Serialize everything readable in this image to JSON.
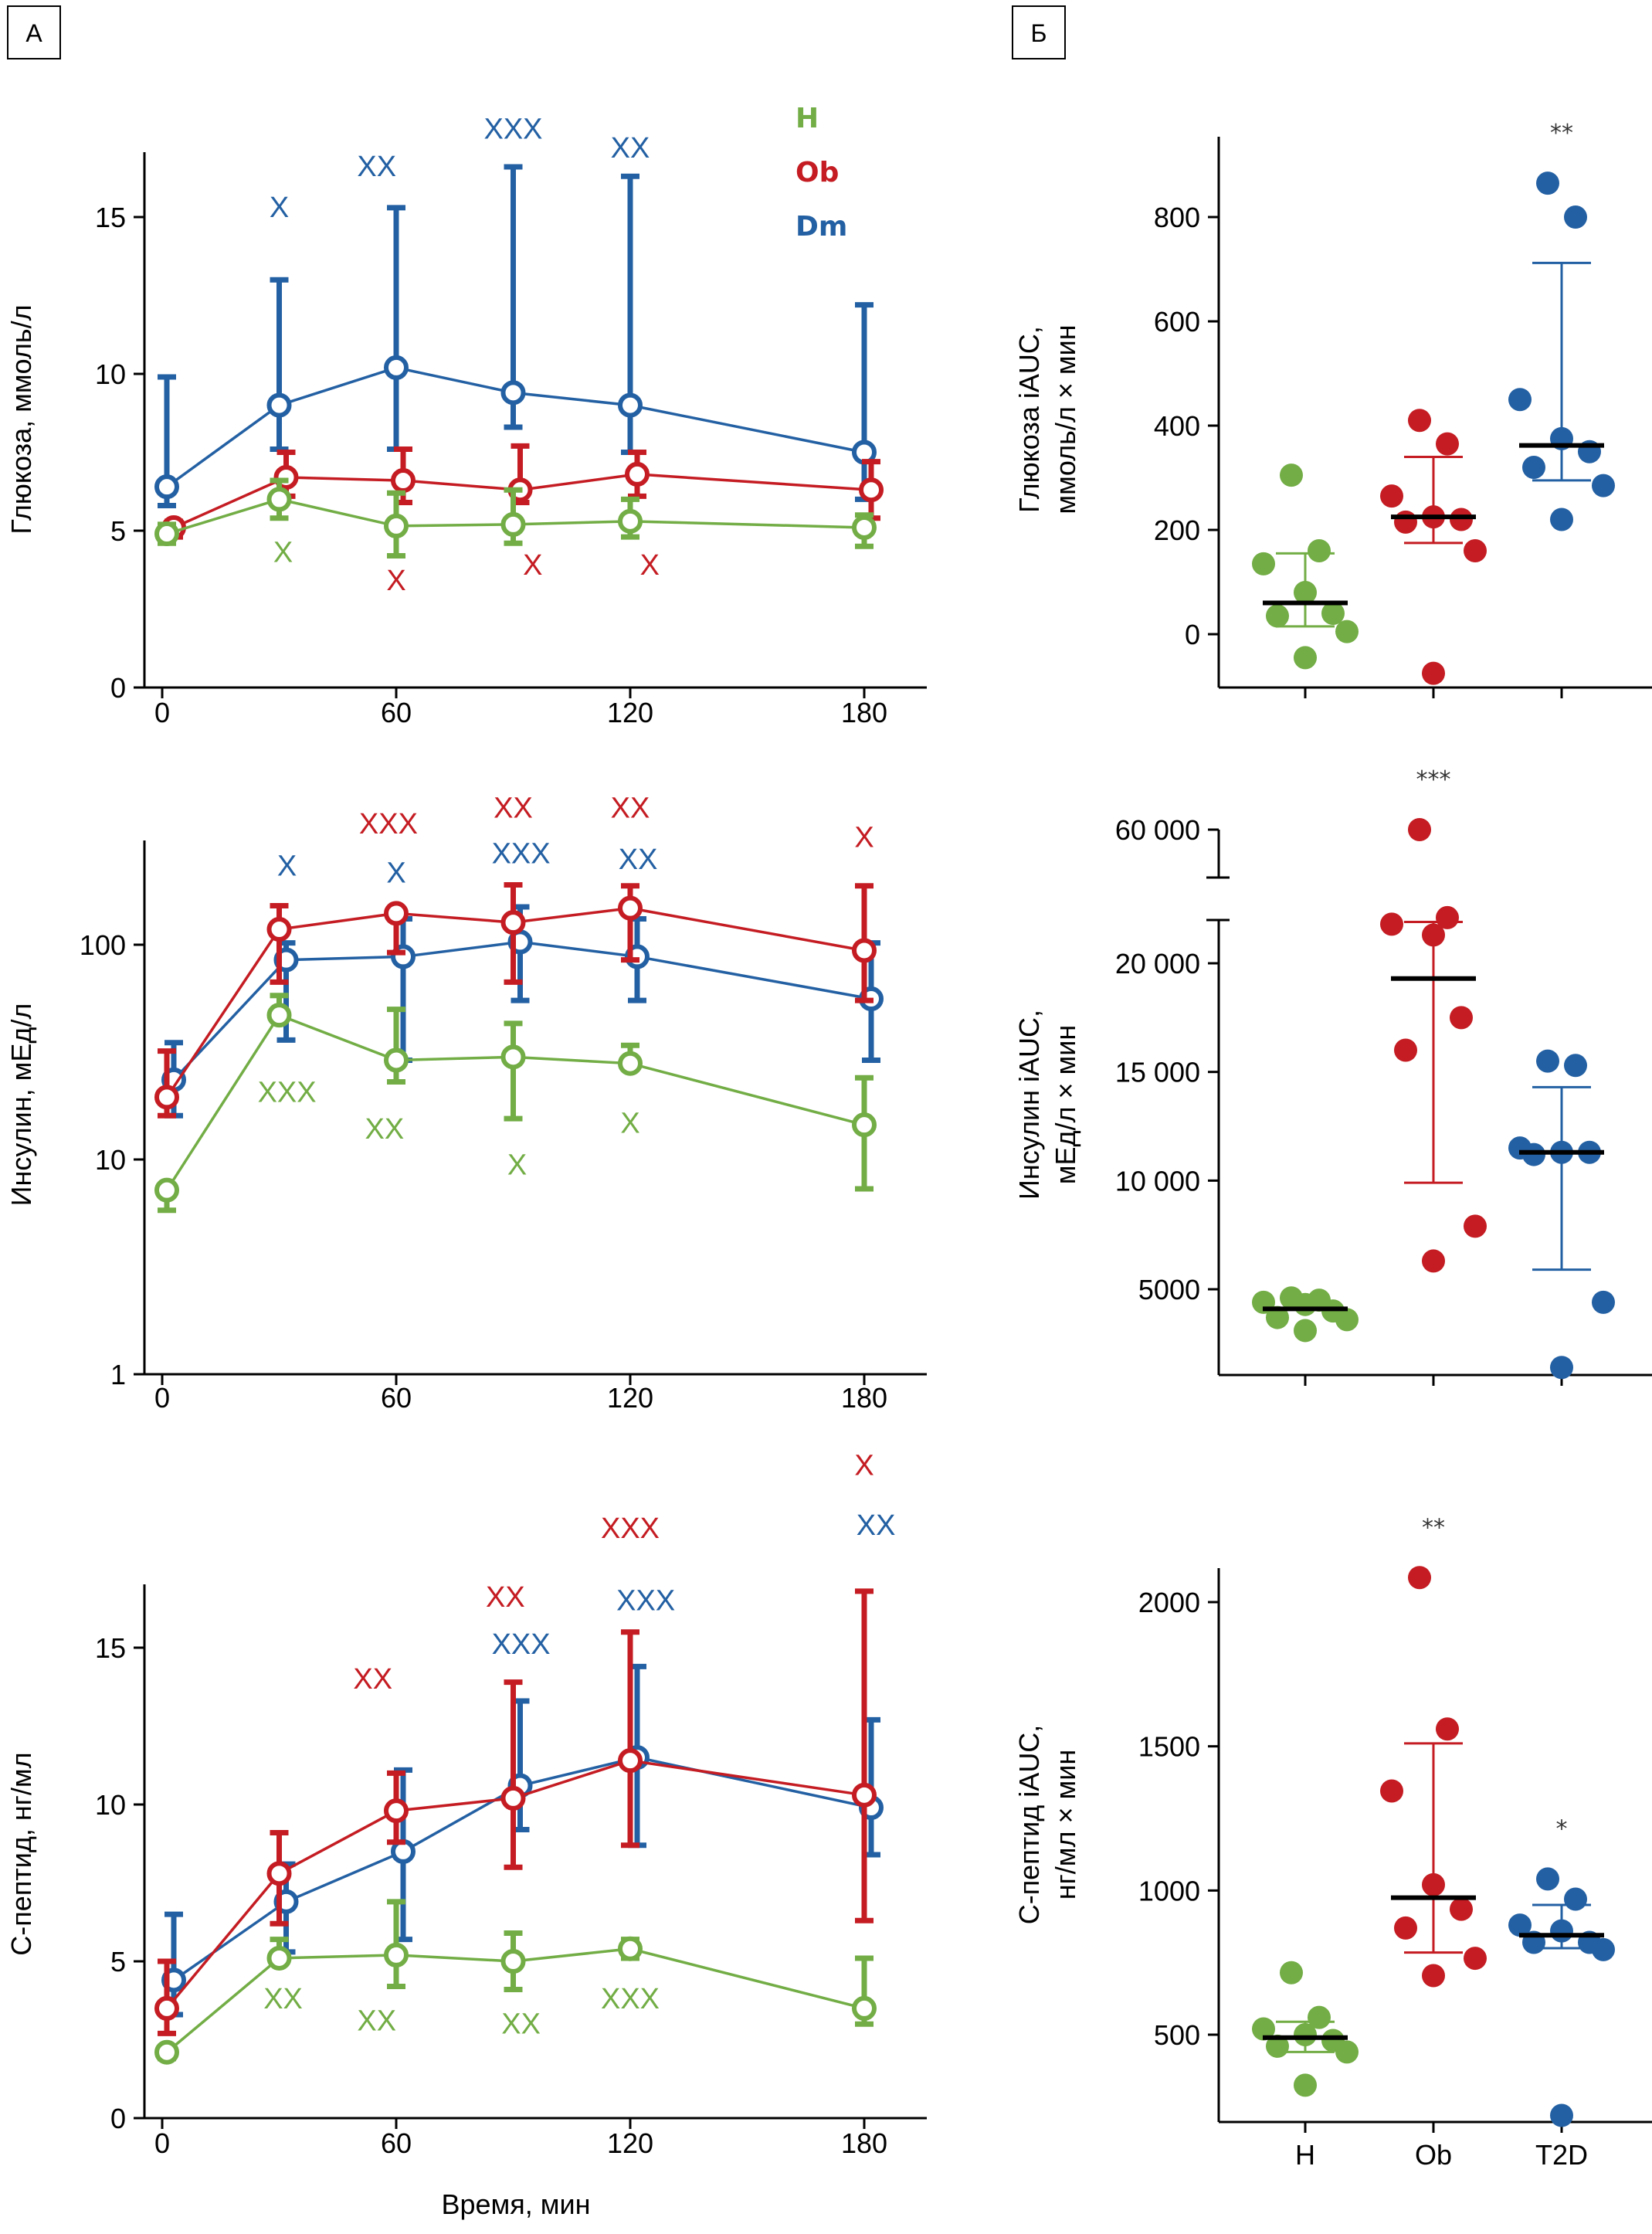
{
  "panels": {
    "a_label": "А",
    "b_label": "Б"
  },
  "colors": {
    "H": "#72ad45",
    "Ob": "#c41c22",
    "Dm": "#2360a3"
  },
  "legend": [
    "H",
    "Ob",
    "Dm"
  ],
  "xaxis_label": "Время, мин",
  "chart_data": [
    {
      "id": "glucose_time",
      "type": "line",
      "ylabel": "Глюкоза, ммоль/л",
      "yscale": "linear",
      "ylim": [
        0,
        17
      ],
      "yticks": [
        0,
        5,
        10,
        15
      ],
      "xticks": [
        0,
        60,
        120,
        180
      ],
      "x": [
        0,
        30,
        60,
        90,
        120,
        180
      ],
      "series": [
        {
          "name": "H",
          "values": [
            4.9,
            6.0,
            5.15,
            5.2,
            5.3,
            5.1
          ],
          "err_low": [
            4.6,
            5.4,
            4.2,
            4.6,
            4.8,
            4.5
          ],
          "err_high": [
            5.2,
            6.6,
            6.2,
            6.3,
            6.0,
            5.5
          ],
          "offset": 0
        },
        {
          "name": "Ob",
          "values": [
            5.1,
            6.7,
            6.6,
            6.3,
            6.8,
            6.3
          ],
          "err_low": [
            4.8,
            6.1,
            5.9,
            5.9,
            6.1,
            5.4
          ],
          "err_high": [
            5.3,
            7.5,
            7.6,
            7.7,
            7.5,
            7.2
          ],
          "offset": 3
        },
        {
          "name": "Dm",
          "values": [
            6.4,
            9.0,
            10.2,
            9.4,
            9.0,
            7.5
          ],
          "err_low": [
            5.8,
            7.6,
            7.6,
            8.3,
            7.5,
            6.0
          ],
          "err_high": [
            9.9,
            13.0,
            15.3,
            16.6,
            16.3,
            12.2
          ],
          "offset": 0
        }
      ],
      "annotations": [
        {
          "group": "Dm",
          "x": 30,
          "text": "X",
          "y": 15.0
        },
        {
          "group": "Dm",
          "x": 55,
          "text": "XX",
          "y": 16.3
        },
        {
          "group": "Dm",
          "x": 90,
          "text": "XXX",
          "y": 17.5
        },
        {
          "group": "Dm",
          "x": 120,
          "text": "XX",
          "y": 16.9
        },
        {
          "group": "H",
          "x": 31,
          "text": "X",
          "y": 4.0
        },
        {
          "group": "Ob",
          "x": 60,
          "text": "X",
          "y": 3.1
        },
        {
          "group": "Ob",
          "x": 95,
          "text": "X",
          "y": 3.6
        },
        {
          "group": "Ob",
          "x": 125,
          "text": "X",
          "y": 3.6
        }
      ]
    },
    {
      "id": "insulin_time",
      "type": "line",
      "ylabel": "Инсулин, мЕд/л",
      "yscale": "log",
      "ylim": [
        1,
        270
      ],
      "yticks": [
        1,
        10,
        100
      ],
      "xticks": [
        0,
        60,
        120,
        180
      ],
      "x": [
        0,
        30,
        60,
        90,
        120,
        180
      ],
      "series": [
        {
          "name": "H",
          "values": [
            7.2,
            47,
            29,
            30,
            28,
            14.5
          ],
          "err_low": [
            5.8,
            47,
            23,
            15.5,
            28,
            7.3
          ],
          "err_high": [
            7.2,
            58,
            50,
            43,
            34,
            24
          ],
          "offset": 0
        },
        {
          "name": "Ob",
          "values": [
            19.5,
            118,
            140,
            127,
            148,
            94
          ],
          "err_low": [
            16,
            67,
            92,
            67,
            85,
            55
          ],
          "err_high": [
            32,
            152,
            140,
            190,
            188,
            188
          ],
          "offset": 0
        },
        {
          "name": "Dm",
          "values": [
            23.5,
            85,
            88,
            103,
            88,
            56
          ],
          "err_low": [
            16,
            36,
            29,
            55,
            55,
            29
          ],
          "err_high": [
            35,
            102,
            132,
            150,
            132,
            102
          ],
          "offset": 3
        }
      ],
      "annotations": [
        {
          "group": "Ob",
          "x": 58,
          "text": "XXX",
          "y": 330
        },
        {
          "group": "Ob",
          "x": 90,
          "text": "XX",
          "y": 390
        },
        {
          "group": "Ob",
          "x": 120,
          "text": "XX",
          "y": 390
        },
        {
          "group": "Ob",
          "x": 180,
          "text": "X",
          "y": 285
        },
        {
          "group": "Dm",
          "x": 32,
          "text": "X",
          "y": 210
        },
        {
          "group": "Dm",
          "x": 60,
          "text": "X",
          "y": 195
        },
        {
          "group": "Dm",
          "x": 92,
          "text": "XXX",
          "y": 240
        },
        {
          "group": "Dm",
          "x": 122,
          "text": "XX",
          "y": 225
        },
        {
          "group": "H",
          "x": 32,
          "text": "XXX",
          "y": 18.5
        },
        {
          "group": "H",
          "x": 57,
          "text": "XX",
          "y": 12.5
        },
        {
          "group": "H",
          "x": 91,
          "text": "X",
          "y": 8.5
        },
        {
          "group": "H",
          "x": 120,
          "text": "X",
          "y": 13.3
        }
      ]
    },
    {
      "id": "cpeptide_time",
      "type": "line",
      "ylabel": "С-пептид, нг/мл",
      "xlabel": "Время, мин",
      "yscale": "linear",
      "ylim": [
        0,
        17
      ],
      "yticks": [
        0,
        5,
        10,
        15
      ],
      "xticks": [
        0,
        60,
        120,
        180
      ],
      "x": [
        0,
        30,
        60,
        90,
        120,
        180
      ],
      "series": [
        {
          "name": "H",
          "values": [
            2.1,
            5.1,
            5.2,
            5.0,
            5.4,
            3.5
          ],
          "err_low": [
            1.9,
            5.1,
            4.2,
            4.1,
            5.1,
            3.0
          ],
          "err_high": [
            2.1,
            5.7,
            6.9,
            5.9,
            5.7,
            5.1
          ],
          "offset": 0
        },
        {
          "name": "Ob",
          "values": [
            3.5,
            7.8,
            9.8,
            10.2,
            11.4,
            10.3
          ],
          "err_low": [
            2.7,
            6.2,
            8.8,
            8.0,
            8.7,
            6.3
          ],
          "err_high": [
            5.0,
            9.1,
            11.0,
            13.9,
            15.5,
            16.8
          ],
          "offset": 0
        },
        {
          "name": "Dm",
          "values": [
            4.4,
            6.9,
            8.5,
            10.6,
            11.5,
            9.9
          ],
          "err_low": [
            3.3,
            5.3,
            5.7,
            9.2,
            8.7,
            8.4
          ],
          "err_high": [
            6.5,
            8.1,
            11.1,
            13.3,
            14.4,
            12.7
          ],
          "offset": 3
        }
      ],
      "annotations": [
        {
          "group": "Ob",
          "x": 180,
          "text": "X",
          "y": 20.5
        },
        {
          "group": "Dm",
          "x": 183,
          "text": "XX",
          "y": 18.6
        },
        {
          "group": "Ob",
          "x": 120,
          "text": "XXX",
          "y": 18.5
        },
        {
          "group": "Ob",
          "x": 88,
          "text": "XX",
          "y": 16.3
        },
        {
          "group": "Dm",
          "x": 124,
          "text": "XXX",
          "y": 16.2
        },
        {
          "group": "Dm",
          "x": 92,
          "text": "XXX",
          "y": 14.8
        },
        {
          "group": "Ob",
          "x": 54,
          "text": "XX",
          "y": 13.7
        },
        {
          "group": "H",
          "x": 31,
          "text": "XX",
          "y": 3.5
        },
        {
          "group": "H",
          "x": 55,
          "text": "XX",
          "y": 2.8
        },
        {
          "group": "H",
          "x": 92,
          "text": "XX",
          "y": 2.7
        },
        {
          "group": "H",
          "x": 120,
          "text": "XXX",
          "y": 3.5
        }
      ]
    },
    {
      "id": "glucose_iauc",
      "type": "scatter",
      "ylabel": "Глюкоза iAUC,\nммоль/л × мин",
      "ylabel_lines": [
        "Глюкоза iAUC,",
        "ммоль/л × мин"
      ],
      "ylim": [
        -125,
        950
      ],
      "yticks": [
        0,
        200,
        400,
        600,
        800
      ],
      "categories": [
        "H",
        "Ob",
        "T2D"
      ],
      "groups": [
        {
          "name": "H",
          "color_key": "H",
          "points": [
            305,
            160,
            135,
            80,
            40,
            35,
            5,
            -45
          ],
          "median": 60,
          "err": [
            15,
            155
          ],
          "signif": ""
        },
        {
          "name": "Ob",
          "color_key": "Ob",
          "points": [
            410,
            365,
            265,
            225,
            220,
            215,
            160,
            -75
          ],
          "median": 225,
          "err": [
            175,
            340
          ],
          "signif": ""
        },
        {
          "name": "T2D",
          "color_key": "Dm",
          "points": [
            865,
            800,
            450,
            375,
            350,
            320,
            285,
            220
          ],
          "median": 362,
          "err": [
            295,
            712
          ],
          "signif": "**"
        }
      ]
    },
    {
      "id": "insulin_iauc",
      "type": "scatter",
      "ylabel_lines": [
        "Инсулин iAUC,",
        "мЕд/л × мин"
      ],
      "yscale": "broken",
      "ylim": [
        1500,
        22000
      ],
      "upper_segment": [
        55000,
        62000
      ],
      "yticks": [
        5000,
        10000,
        15000,
        20000
      ],
      "ytick_labels": [
        "5000",
        "10 000",
        "15 000",
        "20 000"
      ],
      "upper_tick": 60000,
      "upper_tick_label": "60 000",
      "categories": [
        "H",
        "Ob",
        "T2D"
      ],
      "groups": [
        {
          "name": "H",
          "color_key": "H",
          "points": [
            4600,
            4500,
            4400,
            4300,
            4000,
            3700,
            3600,
            3100
          ],
          "median": 4100,
          "err": [
            4100,
            4100
          ],
          "signif": ""
        },
        {
          "name": "Ob",
          "color_key": "Ob",
          "points": [
            60000,
            22100,
            21800,
            21300,
            17500,
            16000,
            7900,
            6300
          ],
          "median": 19300,
          "err": [
            9900,
            21900
          ],
          "signif": "***"
        },
        {
          "name": "T2D",
          "color_key": "Dm",
          "points": [
            15500,
            15300,
            11500,
            11300,
            11300,
            11200,
            4400,
            1400
          ],
          "median": 11300,
          "err": [
            5900,
            14300
          ],
          "signif": ""
        }
      ]
    },
    {
      "id": "cpeptide_iauc",
      "type": "scatter",
      "ylabel_lines": [
        "С-пептид iAUC,",
        "нг/мл × мин"
      ],
      "ylim": [
        210,
        2130
      ],
      "yticks": [
        500,
        1000,
        1500,
        2000
      ],
      "categories": [
        "H",
        "Ob",
        "T2D"
      ],
      "groups": [
        {
          "name": "H",
          "color_key": "H",
          "points": [
            715,
            560,
            520,
            500,
            480,
            460,
            440,
            325
          ],
          "median": 490,
          "err": [
            440,
            545
          ],
          "signif": ""
        },
        {
          "name": "Ob",
          "color_key": "Ob",
          "points": [
            2085,
            1560,
            1345,
            1020,
            935,
            870,
            765,
            705
          ],
          "median": 975,
          "err": [
            785,
            1510
          ],
          "signif": "**"
        },
        {
          "name": "T2D",
          "color_key": "Dm",
          "points": [
            1040,
            970,
            880,
            860,
            820,
            820,
            795,
            220
          ],
          "median": 845,
          "err": [
            800,
            950
          ],
          "signif": "*"
        }
      ]
    }
  ]
}
